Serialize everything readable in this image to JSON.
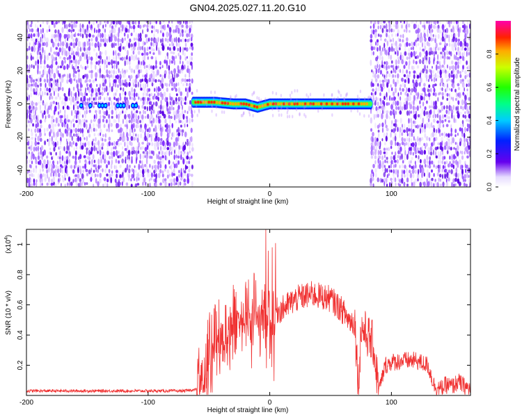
{
  "title": "GN04.2025.027.11.20.G10",
  "chart_data": [
    {
      "type": "heatmap",
      "xlabel": "Height of straight line (km)",
      "ylabel": "Frequency (Hz)",
      "xlim": [
        -200,
        165
      ],
      "ylim": [
        -50,
        50
      ],
      "xticks": [
        -200,
        -100,
        0,
        100
      ],
      "yticks": [
        -40,
        -20,
        0,
        20,
        40
      ],
      "noise_regions": [
        [
          -200,
          -63
        ],
        [
          83,
          165
        ]
      ],
      "blank_region": [
        -63,
        83
      ],
      "signal_band": {
        "x_range": [
          -63,
          83
        ],
        "frequency_hz": 0,
        "profile": [
          {
            "x": -63,
            "y": 1
          },
          {
            "x": -55,
            "y": 1
          },
          {
            "x": -45,
            "y": 1
          },
          {
            "x": -30,
            "y": 0
          },
          {
            "x": -20,
            "y": 0
          },
          {
            "x": -10,
            "y": -2
          },
          {
            "x": 0,
            "y": 0
          },
          {
            "x": 10,
            "y": 0
          },
          {
            "x": 30,
            "y": 0
          },
          {
            "x": 50,
            "y": 0
          },
          {
            "x": 70,
            "y": 0
          },
          {
            "x": 83,
            "y": 0
          }
        ]
      },
      "weak_signal": {
        "x_range": [
          -155,
          -108
        ],
        "frequency_hz": -1
      },
      "colorbar": {
        "label": "Normalized spectral amplitude",
        "range": [
          0,
          1
        ],
        "ticks": [
          0.0,
          0.2,
          0.4,
          0.6,
          0.8
        ],
        "tick_labels": [
          "0.0",
          "0.2",
          "0.4",
          "0.6",
          "0.8"
        ]
      }
    },
    {
      "type": "line",
      "xlabel": "Height of straight line (km)",
      "ylabel": "SNR (10 * v/v)",
      "y_multiplier": "(x10",
      "y_multiplier_exp": "4",
      "y_multiplier_close": ")",
      "xlim": [
        -200,
        165
      ],
      "ylim": [
        0,
        1.1
      ],
      "xticks": [
        -200,
        -100,
        0,
        100
      ],
      "yticks": [
        0.2,
        0.4,
        0.6,
        0.8,
        1
      ],
      "ytick_labels": [
        "0.2",
        "0.4",
        "0.6",
        "0.8",
        "1"
      ],
      "color": "#f03030",
      "series": [
        {
          "x": [
            -200,
            -150,
            -100,
            -70,
            -60,
            -55,
            -50,
            -45,
            -40,
            -35,
            -30,
            -25,
            -20,
            -15,
            -10,
            -5,
            0,
            5,
            10,
            15,
            20,
            25,
            30,
            35,
            40,
            45,
            50,
            55,
            60,
            65,
            70,
            73,
            75,
            80,
            85,
            88,
            90,
            95,
            100,
            110,
            120,
            130,
            135,
            140,
            145,
            150,
            155,
            160,
            165
          ],
          "y": [
            0.03,
            0.03,
            0.03,
            0.03,
            0.04,
            0.12,
            0.3,
            0.35,
            0.38,
            0.42,
            0.46,
            0.5,
            0.52,
            0.56,
            0.58,
            0.56,
            0.55,
            0.56,
            0.57,
            0.6,
            0.63,
            0.65,
            0.66,
            0.67,
            0.66,
            0.65,
            0.64,
            0.6,
            0.56,
            0.5,
            0.48,
            0.05,
            0.45,
            0.4,
            0.34,
            0.14,
            0.04,
            0.2,
            0.22,
            0.23,
            0.23,
            0.2,
            0.07,
            0.04,
            0.07,
            0.06,
            0.09,
            0.06,
            0.04
          ]
        }
      ]
    }
  ]
}
